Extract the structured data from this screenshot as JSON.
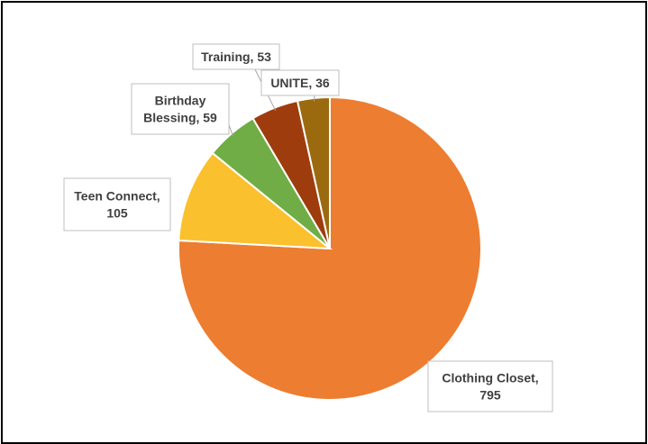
{
  "chart_data": {
    "type": "pie",
    "title": "",
    "start_angle_deg": 0,
    "direction": "clockwise",
    "slices": [
      {
        "label": "Clothing Closet",
        "value": 795,
        "color": "#ED7D31"
      },
      {
        "label": "Teen Connect",
        "value": 105,
        "color": "#FBC02D"
      },
      {
        "label": "Birthday Blessing",
        "value": 59,
        "color": "#70AD47"
      },
      {
        "label": "Training",
        "value": 53,
        "color": "#9E3C0E"
      },
      {
        "label": "UNITE",
        "value": 36,
        "color": "#9B6A0F"
      }
    ]
  }
}
